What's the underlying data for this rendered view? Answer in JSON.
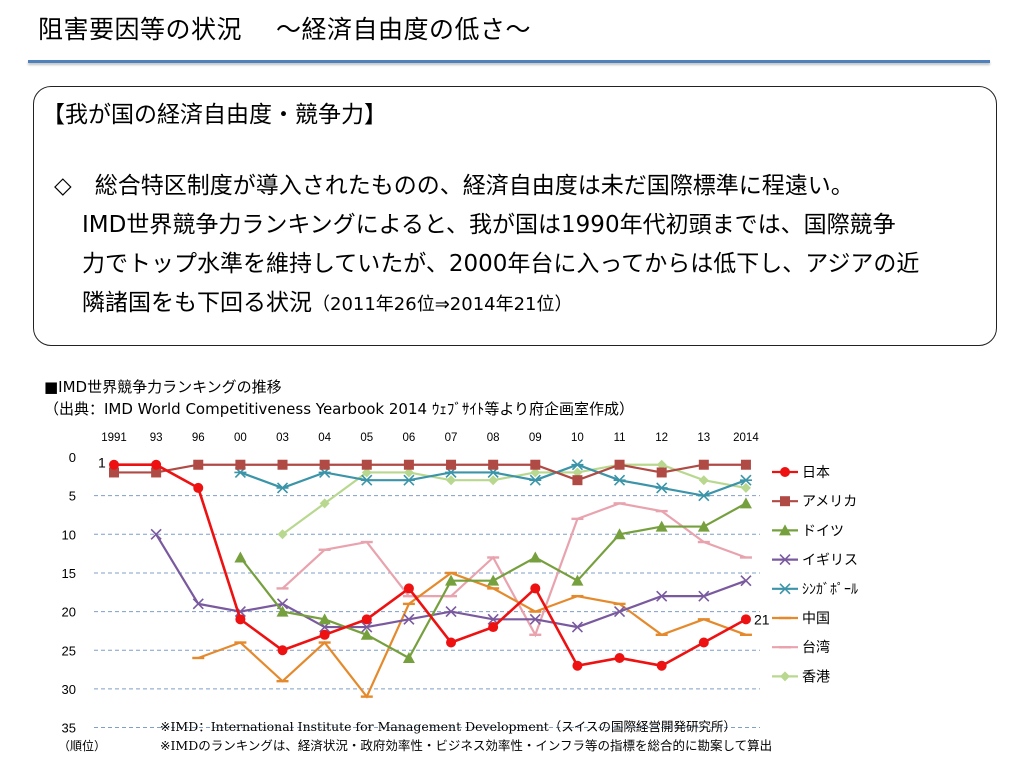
{
  "slide": {
    "title": "阻害要因等の状況　 ～経済自由度の低さ～",
    "box_heading": "【我が国の経済自由度・競争力】",
    "box_line1": "◇　総合特区制度が導入されたものの、経済自由度は未だ国際標準に程遠い。",
    "box_line2": "IMD世界競争力ランキングによると、我が国は1990年代初頭までは、国際競争",
    "box_line3": "力でトップ水準を維持していたが、2000年台に入ってからは低下し、アジアの近",
    "box_line4a": "隣諸国をも下回る状況",
    "box_line4b": "（2011年26位⇒2014年21位）",
    "chart_title": "■IMD世界競争力ランキングの推移",
    "chart_source": "（出典：IMD World Competitiveness Yearbook 2014 ｳｪﾌﾞｻｲﾄ等より府企画室作成）",
    "note1": "※IMD：International Institute for Management Development（スイスの国際経営開発研究所）",
    "note2": "※IMDのランキングは、経済状況・政府効率性・ビジネス効率性・インフラ等の指標を総合的に勘案して算出"
  },
  "chart_data": {
    "type": "line",
    "categories": [
      "1991",
      "93",
      "96",
      "00",
      "03",
      "04",
      "05",
      "06",
      "07",
      "08",
      "09",
      "10",
      "11",
      "12",
      "13",
      "2014"
    ],
    "ylim": [
      0,
      35
    ],
    "y_reversed": true,
    "yticks": [
      0,
      5,
      10,
      15,
      20,
      25,
      30,
      35
    ],
    "ylabel": "（順位）",
    "legend_position": "right",
    "annotations": [
      {
        "series": "日本",
        "category": "1991",
        "text": "1"
      },
      {
        "series": "日本",
        "category": "2014",
        "text": "21"
      }
    ],
    "series": [
      {
        "name": "日本",
        "color": "#ee1111",
        "marker": "circle",
        "values": [
          1,
          1,
          4,
          21,
          25,
          23,
          21,
          17,
          24,
          22,
          17,
          27,
          26,
          27,
          24,
          21
        ]
      },
      {
        "name": "アメリカ",
        "color": "#b04a45",
        "marker": "square",
        "values": [
          2,
          2,
          1,
          1,
          1,
          1,
          1,
          1,
          1,
          1,
          1,
          3,
          1,
          2,
          1,
          1
        ]
      },
      {
        "name": "ドイツ",
        "color": "#76a03d",
        "marker": "triangle",
        "values": [
          null,
          null,
          null,
          13,
          20,
          21,
          23,
          26,
          16,
          16,
          13,
          16,
          10,
          9,
          9,
          6
        ]
      },
      {
        "name": "イギリス",
        "color": "#7a5a9e",
        "marker": "x",
        "values": [
          null,
          10,
          19,
          20,
          19,
          22,
          22,
          21,
          20,
          21,
          21,
          22,
          20,
          18,
          18,
          16
        ]
      },
      {
        "name": "シンガポール",
        "color": "#3b94a8",
        "marker": "star",
        "values": [
          null,
          null,
          null,
          2,
          4,
          2,
          3,
          3,
          2,
          2,
          3,
          1,
          3,
          4,
          5,
          3
        ]
      },
      {
        "name": "中国",
        "color": "#e58a2c",
        "marker": "dash",
        "values": [
          null,
          null,
          26,
          24,
          29,
          24,
          31,
          19,
          15,
          17,
          20,
          18,
          19,
          23,
          21,
          23
        ]
      },
      {
        "name": "台湾",
        "color": "#e8a3ae",
        "marker": "dash",
        "values": [
          null,
          null,
          null,
          null,
          17,
          12,
          11,
          18,
          18,
          13,
          23,
          8,
          6,
          7,
          11,
          13
        ]
      },
      {
        "name": "香港",
        "color": "#b9d88f",
        "marker": "diamond",
        "values": [
          null,
          null,
          null,
          null,
          10,
          6,
          2,
          2,
          3,
          3,
          2,
          2,
          1,
          1,
          3,
          4
        ]
      }
    ],
    "legend_labels": [
      "日本",
      "アメリカ",
      "ドイツ",
      "イギリス",
      "ｼﾝｶﾞﾎﾟｰﾙ",
      "中国",
      "台湾",
      "香港"
    ]
  }
}
